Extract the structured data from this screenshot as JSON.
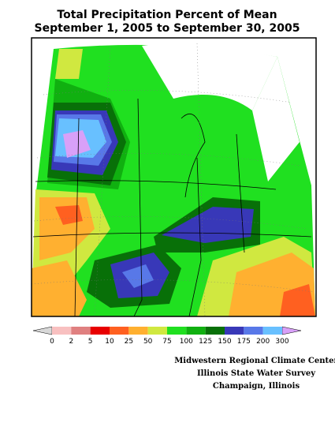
{
  "header": {
    "title": [
      "Total Precipitation Percent of Mean",
      "September 1, 2005 to September 30, 2005"
    ]
  },
  "legend": {
    "ticks": [
      0,
      2,
      5,
      10,
      25,
      50,
      75,
      100,
      125,
      150,
      175,
      200,
      300
    ],
    "low_color": "#d8d8d8",
    "high_color": "#d8a0f8",
    "colors": [
      "#f8c0c0",
      "#e08080",
      "#e80000",
      "#ff6020",
      "#ffb030",
      "#d0e840",
      "#20e020",
      "#10b010",
      "#087008",
      "#3838b8",
      "#5878e8",
      "#68c0ff"
    ]
  },
  "footer": {
    "lines": [
      "Midwestern Regional Climate Center",
      "Illinois State Water Survey",
      "Champaign, Illinois"
    ]
  }
}
